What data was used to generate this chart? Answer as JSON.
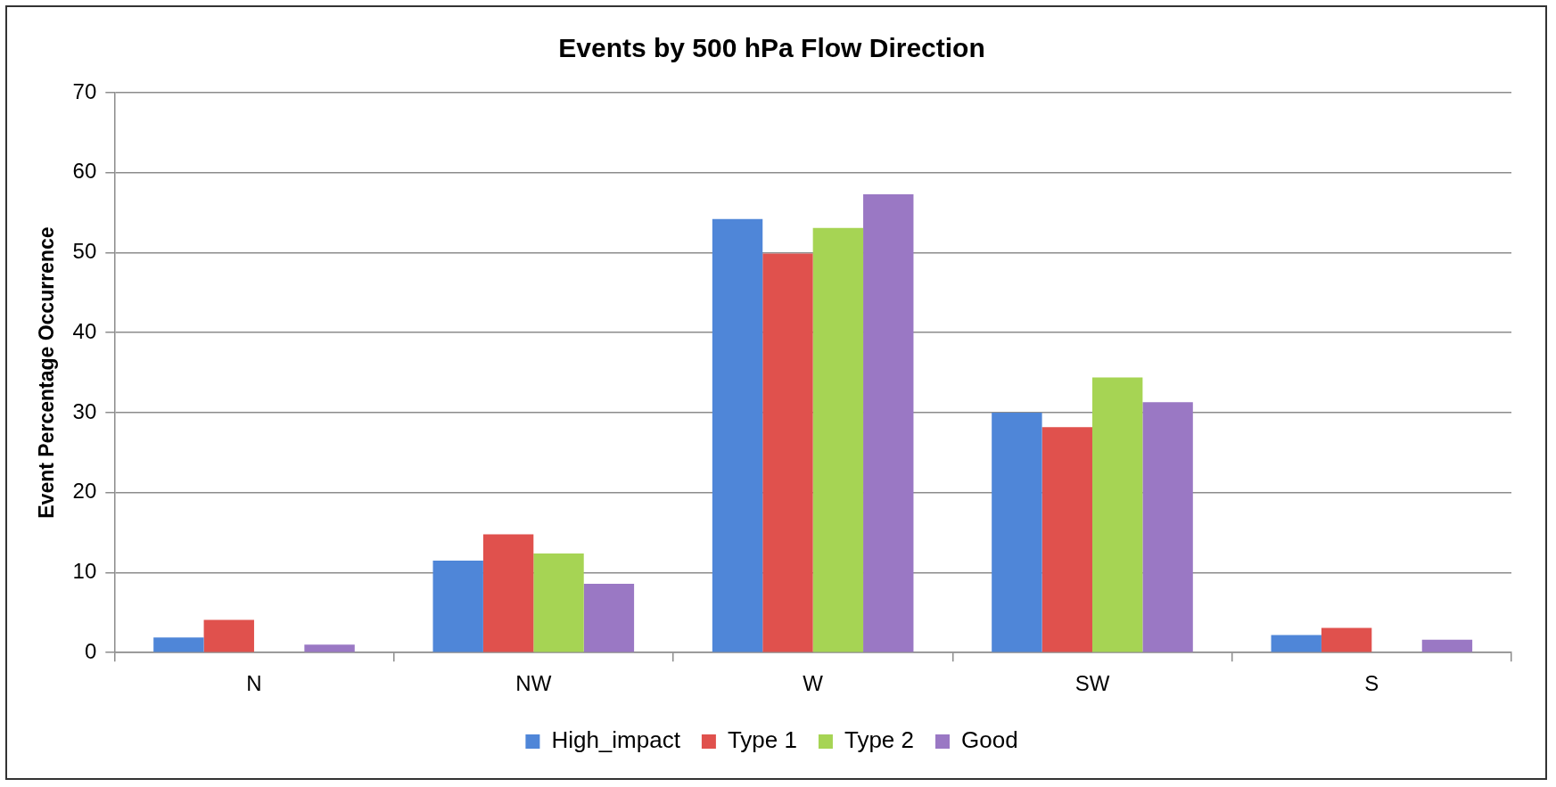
{
  "chart_data": {
    "type": "bar",
    "title": "Events by 500 hPa Flow Direction",
    "ylabel": "Event Percentage Occurrence",
    "categories": [
      "N",
      "NW",
      "W",
      "SW",
      "S"
    ],
    "series": [
      {
        "name": "High_impact",
        "color": "#4f86d8",
        "values": [
          1.9,
          11.5,
          54.2,
          30.0,
          2.2
        ]
      },
      {
        "name": "Type 1",
        "color": "#e0514d",
        "values": [
          4.1,
          14.8,
          49.9,
          28.2,
          3.1
        ]
      },
      {
        "name": "Type 2",
        "color": "#a6d454",
        "values": [
          0,
          12.4,
          53.1,
          34.4,
          0
        ]
      },
      {
        "name": "Good",
        "color": "#9a78c4",
        "values": [
          1.0,
          8.6,
          57.3,
          31.3,
          1.6
        ]
      }
    ],
    "ylim": [
      0,
      70
    ],
    "yticks": [
      0,
      10,
      20,
      30,
      40,
      50,
      60,
      70
    ],
    "grid": "y",
    "legend": "bottom"
  }
}
